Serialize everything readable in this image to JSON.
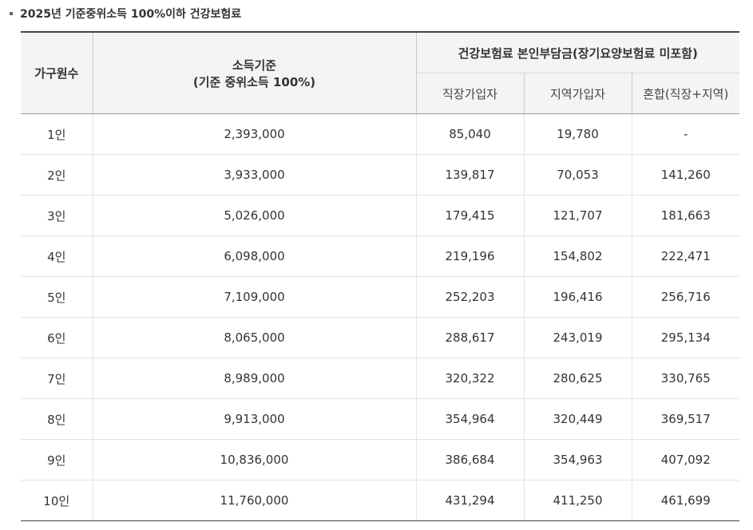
{
  "heading": "2025년 기준중위소득 100%이하 건강보험료",
  "table": {
    "headers": {
      "household": "가구원수",
      "income_line1": "소득기준",
      "income_line2": "(기준 중위소득 100%)",
      "premium_group": "건강보험료 본인부담금(장기요양보험료 미포함)",
      "employee": "직장가입자",
      "regional": "지역가입자",
      "mixed": "혼합(직장+지역)"
    },
    "rows": [
      {
        "household": "1인",
        "income": "2,393,000",
        "employee": "85,040",
        "regional": "19,780",
        "mixed": "-"
      },
      {
        "household": "2인",
        "income": "3,933,000",
        "employee": "139,817",
        "regional": "70,053",
        "mixed": "141,260"
      },
      {
        "household": "3인",
        "income": "5,026,000",
        "employee": "179,415",
        "regional": "121,707",
        "mixed": "181,663"
      },
      {
        "household": "4인",
        "income": "6,098,000",
        "employee": "219,196",
        "regional": "154,802",
        "mixed": "222,471"
      },
      {
        "household": "5인",
        "income": "7,109,000",
        "employee": "252,203",
        "regional": "196,416",
        "mixed": "256,716"
      },
      {
        "household": "6인",
        "income": "8,065,000",
        "employee": "288,617",
        "regional": "243,019",
        "mixed": "295,134"
      },
      {
        "household": "7인",
        "income": "8,989,000",
        "employee": "320,322",
        "regional": "280,625",
        "mixed": "330,765"
      },
      {
        "household": "8인",
        "income": "9,913,000",
        "employee": "354,964",
        "regional": "320,449",
        "mixed": "369,517"
      },
      {
        "household": "9인",
        "income": "10,836,000",
        "employee": "386,684",
        "regional": "354,963",
        "mixed": "407,092"
      },
      {
        "household": "10인",
        "income": "11,760,000",
        "employee": "431,294",
        "regional": "411,250",
        "mixed": "461,699"
      }
    ]
  }
}
